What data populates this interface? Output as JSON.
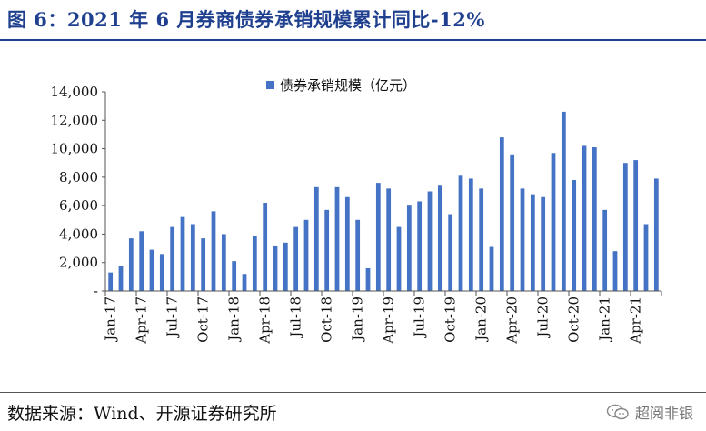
{
  "header": {
    "title": "图 6：2021 年 6 月券商债券承销规模累计同比-12%"
  },
  "footer": {
    "source": "数据来源：Wind、开源证券研究所",
    "watermark": "超阅非银",
    "watermark_icon": "wechat-icon"
  },
  "colors": {
    "bar": "#4472c4",
    "title": "#1f3f8f",
    "axis": "#555555"
  },
  "chart_data": {
    "type": "bar",
    "title": "",
    "xlabel": "",
    "ylabel": "",
    "ylim": [
      0,
      14000
    ],
    "yticks": [
      "-",
      "2,000",
      "4,000",
      "6,000",
      "8,000",
      "10,000",
      "12,000",
      "14,000"
    ],
    "ytick_values": [
      0,
      2000,
      4000,
      6000,
      8000,
      10000,
      12000,
      14000
    ],
    "legend": {
      "label": "债券承销规模（亿元）",
      "position": "top-center"
    },
    "grid": false,
    "xtick_labels": [
      {
        "index": 0,
        "label": "Jan-17"
      },
      {
        "index": 3,
        "label": "Apr-17"
      },
      {
        "index": 6,
        "label": "Jul-17"
      },
      {
        "index": 9,
        "label": "Oct-17"
      },
      {
        "index": 12,
        "label": "Jan-18"
      },
      {
        "index": 15,
        "label": "Apr-18"
      },
      {
        "index": 18,
        "label": "Jul-18"
      },
      {
        "index": 21,
        "label": "Oct-18"
      },
      {
        "index": 24,
        "label": "Jan-19"
      },
      {
        "index": 27,
        "label": "Apr-19"
      },
      {
        "index": 30,
        "label": "Jul-19"
      },
      {
        "index": 33,
        "label": "Oct-19"
      },
      {
        "index": 36,
        "label": "Jan-20"
      },
      {
        "index": 39,
        "label": "Apr-20"
      },
      {
        "index": 42,
        "label": "Jul-20"
      },
      {
        "index": 45,
        "label": "Oct-20"
      },
      {
        "index": 48,
        "label": "Jan-21"
      },
      {
        "index": 51,
        "label": "Apr-21"
      }
    ],
    "series": [
      {
        "name": "债券承销规模（亿元）",
        "values": [
          1300,
          1750,
          3700,
          4200,
          2900,
          2600,
          4500,
          5200,
          4700,
          3700,
          5600,
          4000,
          2100,
          1200,
          3900,
          6200,
          3200,
          3400,
          4500,
          5000,
          7300,
          5700,
          7300,
          6600,
          5000,
          1600,
          7600,
          7200,
          4500,
          6000,
          6300,
          7000,
          7400,
          5400,
          8100,
          7900,
          7200,
          3100,
          10800,
          9600,
          7200,
          6800,
          6600,
          9700,
          12600,
          7800,
          10200,
          10100,
          5700,
          2800,
          9000,
          9200,
          4700,
          7900
        ]
      }
    ]
  }
}
